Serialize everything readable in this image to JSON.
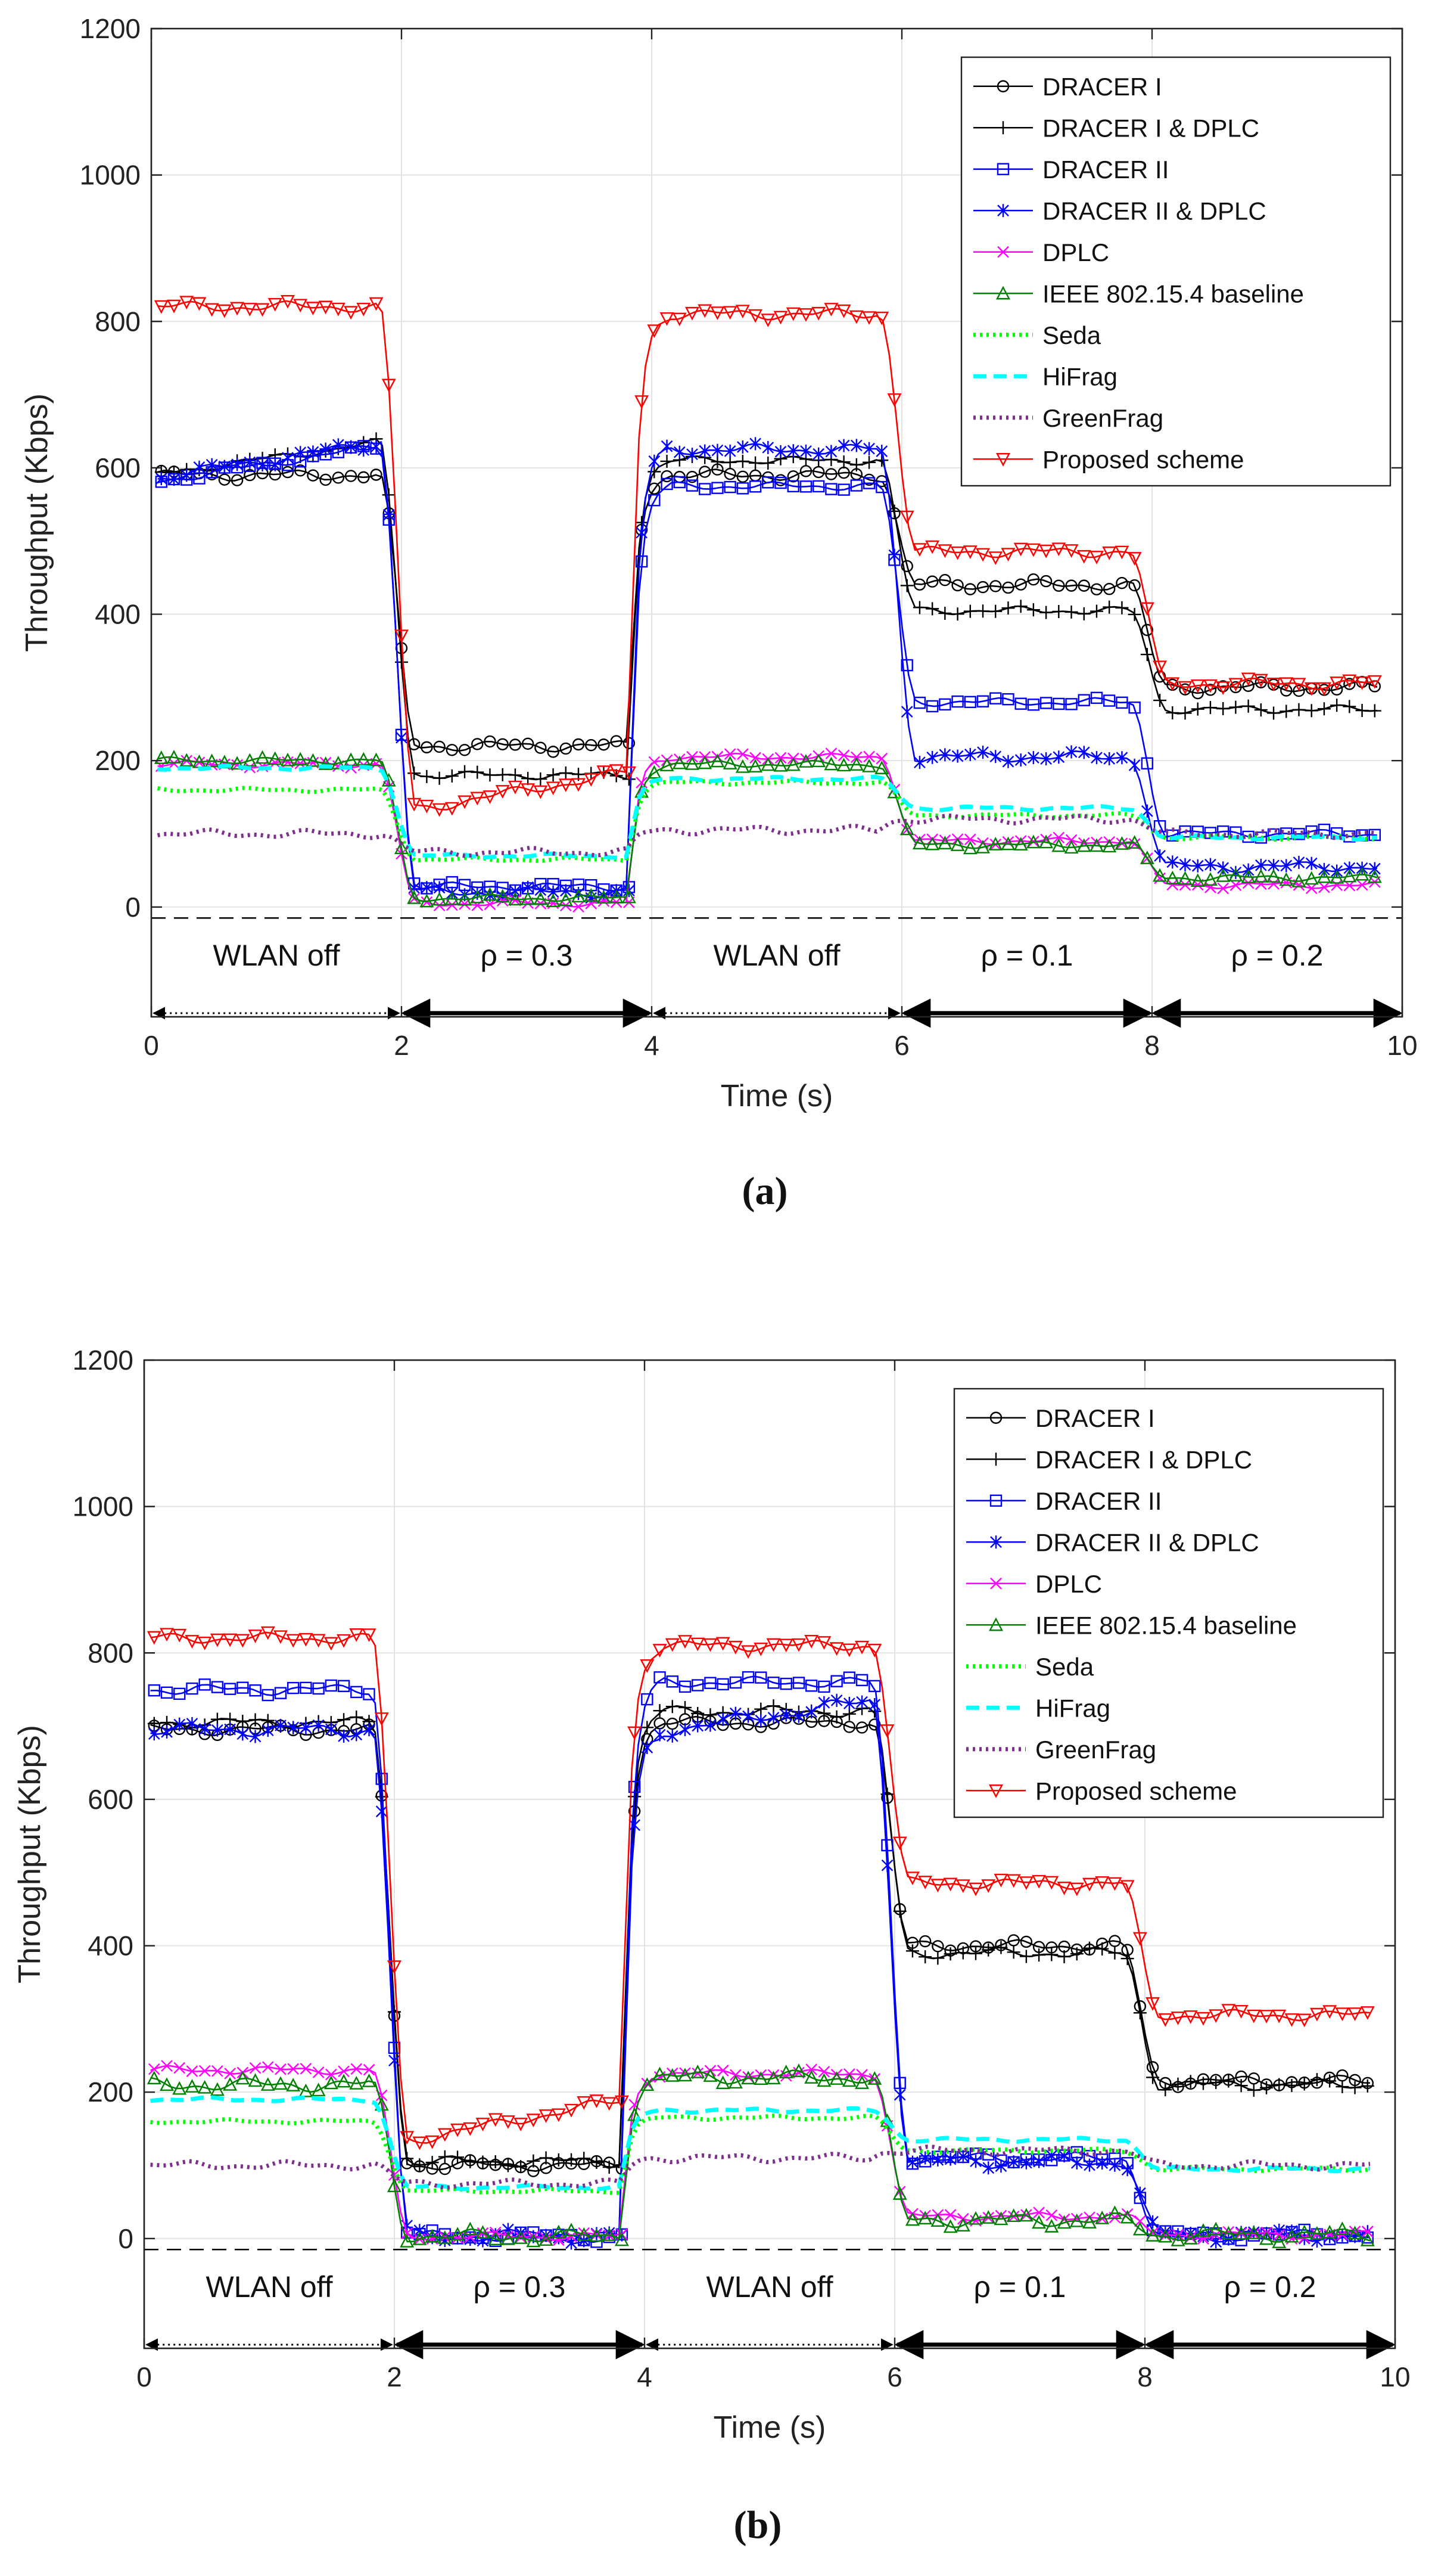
{
  "chart_data": [
    {
      "type": "line",
      "panel_label": "(a)",
      "xlabel": "Time (s)",
      "ylabel": "Throughput (Kbps)",
      "xlim": [
        0,
        10
      ],
      "ylim": [
        -150,
        1200
      ],
      "xticks": [
        0,
        2,
        4,
        6,
        8,
        10
      ],
      "yticks": [
        0,
        200,
        400,
        600,
        800,
        1000,
        1200
      ],
      "grid": true,
      "legend_position": "top-right",
      "reference_line_y": -15,
      "segments": [
        {
          "label": "WLAN off",
          "x0": 0,
          "x1": 2,
          "style": "dotted"
        },
        {
          "label": "ρ = 0.3",
          "x0": 2,
          "x1": 4,
          "style": "solid"
        },
        {
          "label": "WLAN off",
          "x0": 4,
          "x1": 6,
          "style": "dotted"
        },
        {
          "label": "ρ = 0.1",
          "x0": 6,
          "x1": 8,
          "style": "solid"
        },
        {
          "label": "ρ = 0.2",
          "x0": 8,
          "x1": 10,
          "style": "solid"
        }
      ],
      "series": [
        {
          "name": "DRACER I",
          "color": "#000000",
          "marker": "circle",
          "dash": "solid",
          "levels": [
            590,
            220,
            590,
            440,
            300
          ],
          "wobble": 8
        },
        {
          "name": "DRACER I & DPLC",
          "color": "#000000",
          "marker": "plus",
          "dash": "solid",
          "levels": [
            [
              590,
              635
            ],
            180,
            610,
            405,
            270
          ],
          "wobble": 6
        },
        {
          "name": "DRACER II",
          "color": "#0000ff",
          "marker": "square",
          "dash": "solid",
          "levels": [
            [
              580,
              630
            ],
            28,
            575,
            280,
            100
          ],
          "wobble": 6
        },
        {
          "name": "DRACER II & DPLC",
          "color": "#0000ff",
          "marker": "asterisk",
          "dash": "solid",
          "levels": [
            [
              585,
              635
            ],
            20,
            625,
            205,
            55
          ],
          "wobble": 8
        },
        {
          "name": "DPLC",
          "color": "#ff00ff",
          "marker": "cross",
          "dash": "solid",
          "levels": [
            195,
            5,
            205,
            90,
            30
          ],
          "wobble": 5
        },
        {
          "name": "IEEE 802.15.4 baseline",
          "color": "#008000",
          "marker": "triangle-up",
          "dash": "solid",
          "levels": [
            200,
            12,
            195,
            85,
            40
          ],
          "wobble": 5
        },
        {
          "name": "Seda",
          "color": "#00ff00",
          "marker": "none",
          "dash": "dotted",
          "levels": [
            160,
            65,
            170,
            125,
            95
          ],
          "wobble": 3
        },
        {
          "name": "HiFrag",
          "color": "#00ffff",
          "marker": "none",
          "dash": "dashed",
          "levels": [
            190,
            70,
            175,
            135,
            95
          ],
          "wobble": 3
        },
        {
          "name": "GreenFrag",
          "color": "#7e2f8e",
          "marker": "none",
          "dash": "dotted",
          "levels": [
            100,
            75,
            105,
            120,
            100
          ],
          "wobble": 6
        },
        {
          "name": "Proposed scheme",
          "color": "#ff0000",
          "marker": "triangle-down",
          "dash": "solid",
          "levels": [
            820,
            [
              130,
              185
            ],
            810,
            485,
            305
          ],
          "wobble": 8
        }
      ]
    },
    {
      "type": "line",
      "panel_label": "(b)",
      "xlabel": "Time (s)",
      "ylabel": "Throughput (Kbps)",
      "xlim": [
        0,
        10
      ],
      "ylim": [
        -150,
        1200
      ],
      "xticks": [
        0,
        2,
        4,
        6,
        8,
        10
      ],
      "yticks": [
        0,
        200,
        400,
        600,
        800,
        1000,
        1200
      ],
      "grid": true,
      "legend_position": "top-right",
      "reference_line_y": -15,
      "segments": [
        {
          "label": "WLAN off",
          "x0": 0,
          "x1": 2,
          "style": "dotted"
        },
        {
          "label": "ρ = 0.3",
          "x0": 2,
          "x1": 4,
          "style": "solid"
        },
        {
          "label": "WLAN off",
          "x0": 4,
          "x1": 6,
          "style": "dotted"
        },
        {
          "label": "ρ = 0.1",
          "x0": 6,
          "x1": 8,
          "style": "solid"
        },
        {
          "label": "ρ = 0.2",
          "x0": 8,
          "x1": 10,
          "style": "solid"
        }
      ],
      "series": [
        {
          "name": "DRACER I",
          "color": "#000000",
          "marker": "circle",
          "dash": "solid",
          "levels": [
            695,
            100,
            705,
            400,
            215
          ],
          "wobble": 8
        },
        {
          "name": "DRACER I & DPLC",
          "color": "#000000",
          "marker": "plus",
          "dash": "solid",
          "levels": [
            705,
            105,
            720,
            390,
            210
          ],
          "wobble": 8
        },
        {
          "name": "DRACER II",
          "color": "#0000ff",
          "marker": "square",
          "dash": "solid",
          "levels": [
            750,
            3,
            760,
            110,
            5
          ],
          "wobble": 8
        },
        {
          "name": "DRACER II & DPLC",
          "color": "#0000ff",
          "marker": "asterisk",
          "dash": "solid",
          "levels": [
            695,
            3,
            [
              690,
              735
            ],
            105,
            5
          ],
          "wobble": 10
        },
        {
          "name": "DPLC",
          "color": "#ff00ff",
          "marker": "cross",
          "dash": "solid",
          "levels": [
            230,
            3,
            225,
            30,
            5
          ],
          "wobble": 6
        },
        {
          "name": "IEEE 802.15.4 baseline",
          "color": "#008000",
          "marker": "triangle-up",
          "dash": "solid",
          "levels": [
            210,
            3,
            220,
            25,
            5
          ],
          "wobble": 10
        },
        {
          "name": "Seda",
          "color": "#00ff00",
          "marker": "none",
          "dash": "dotted",
          "levels": [
            160,
            65,
            165,
            120,
            95
          ],
          "wobble": 3
        },
        {
          "name": "HiFrag",
          "color": "#00ffff",
          "marker": "none",
          "dash": "dashed",
          "levels": [
            190,
            70,
            175,
            135,
            95
          ],
          "wobble": 3
        },
        {
          "name": "GreenFrag",
          "color": "#7e2f8e",
          "marker": "none",
          "dash": "dotted",
          "levels": [
            100,
            75,
            110,
            120,
            100
          ],
          "wobble": 6
        },
        {
          "name": "Proposed scheme",
          "color": "#ff0000",
          "marker": "triangle-down",
          "dash": "solid",
          "levels": [
            820,
            [
              130,
              190
            ],
            810,
            485,
            305
          ],
          "wobble": 8
        }
      ]
    }
  ]
}
